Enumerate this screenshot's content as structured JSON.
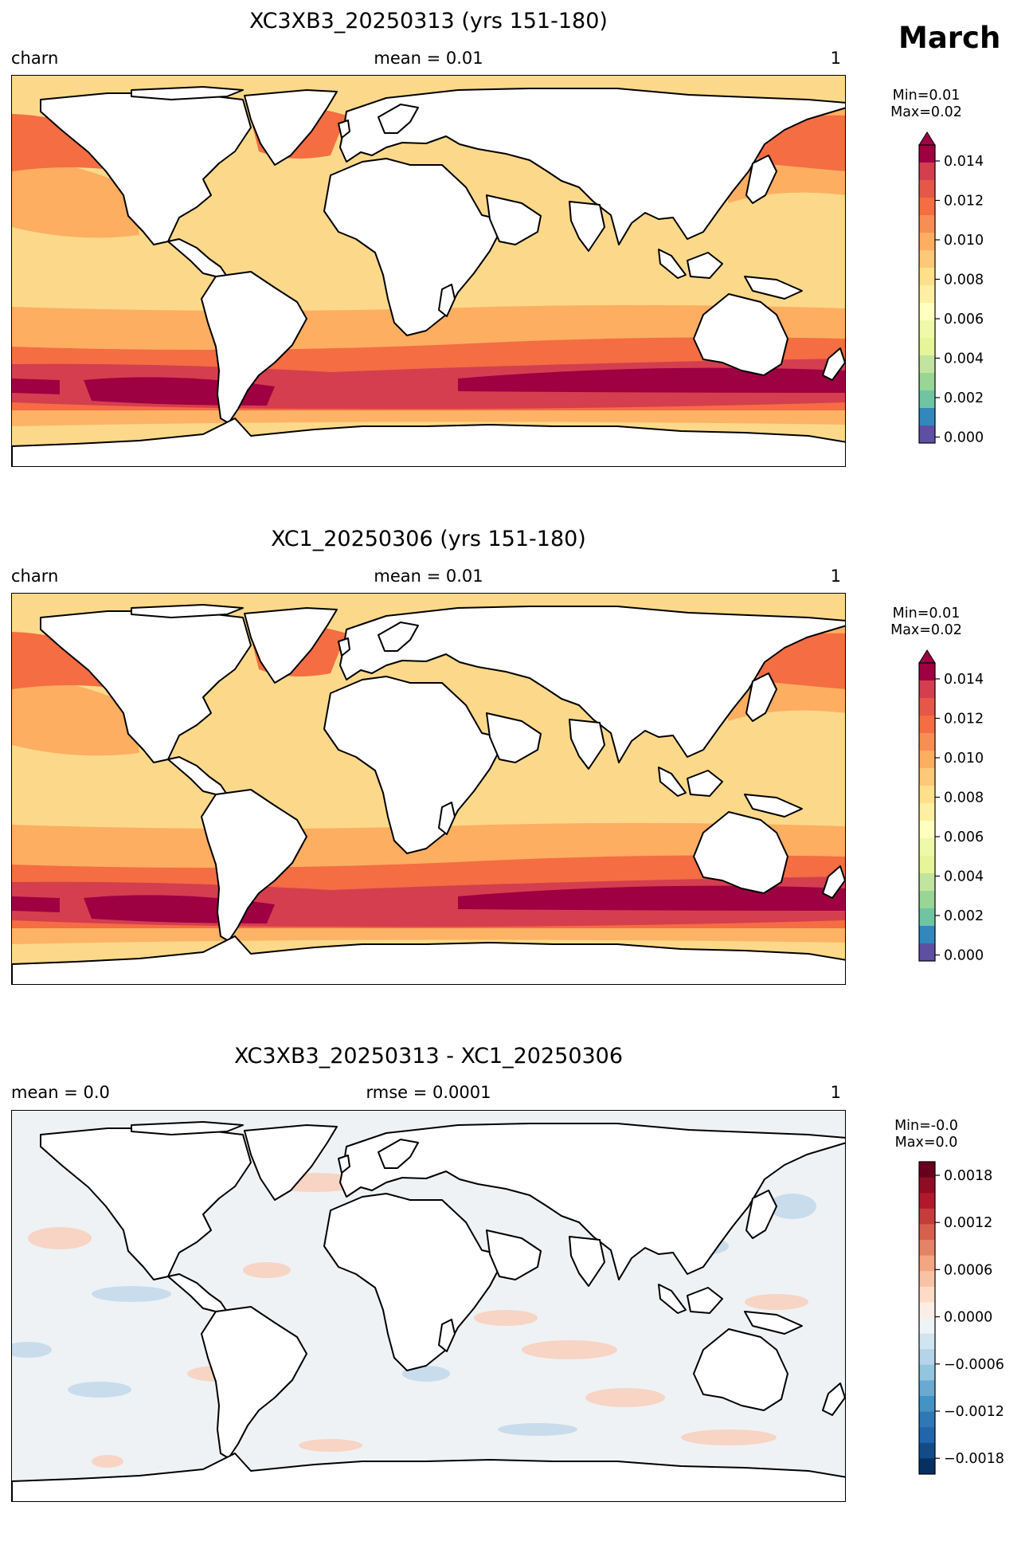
{
  "figure": {
    "month": "March"
  },
  "panels": [
    {
      "title": "XC3XB3_20250313 (yrs 151-180)",
      "left_label": "charn",
      "center_label": "mean = 0.01",
      "right_label": "1",
      "colorbar": {
        "min_label": "Min=0.01",
        "max_label": "Max=0.02",
        "ticks": [
          "0.014",
          "0.012",
          "0.010",
          "0.008",
          "0.006",
          "0.004",
          "0.002",
          "0.000"
        ],
        "extend": "max",
        "colors": [
          "#9e0142",
          "#d53e4f",
          "#e55749",
          "#f46d43",
          "#f88e53",
          "#fdae61",
          "#fdc877",
          "#fee08b",
          "#feefa3",
          "#ffffbf",
          "#f0f8a9",
          "#e6f598",
          "#c1e5a0",
          "#99d594",
          "#70c4a4",
          "#3288bd",
          "#5e4fa2"
        ]
      }
    },
    {
      "title": "XC1_20250306 (yrs 151-180)",
      "left_label": "charn",
      "center_label": "mean = 0.01",
      "right_label": "1",
      "colorbar": {
        "min_label": "Min=0.01",
        "max_label": "Max=0.02",
        "ticks": [
          "0.014",
          "0.012",
          "0.010",
          "0.008",
          "0.006",
          "0.004",
          "0.002",
          "0.000"
        ],
        "extend": "max"
      }
    },
    {
      "title": "XC3XB3_20250313 - XC1_20250306",
      "left_label": "mean = 0.0",
      "center_label": "rmse = 0.0001",
      "right_label": "1",
      "colorbar": {
        "min_label": "Min=-0.0",
        "max_label": "Max=0.0",
        "ticks": [
          "0.0018",
          "0.0012",
          "0.0006",
          "0.0000",
          "−0.0006",
          "−0.0012",
          "−0.0018"
        ],
        "colors": [
          "#67001f",
          "#8e0d25",
          "#b2182b",
          "#c43c3c",
          "#d6604d",
          "#e58368",
          "#f4a582",
          "#f8c2a6",
          "#fddbc7",
          "#fbeee6",
          "#eef3f6",
          "#d1e5f0",
          "#b5d4e9",
          "#92c5de",
          "#6aa9d0",
          "#4393c3",
          "#2e78b5",
          "#2166ac",
          "#134b87",
          "#053061"
        ]
      }
    }
  ],
  "colors": {
    "ocean_base": "#fcd98a",
    "band_orange": "#fdae61",
    "band_red": "#f46d43",
    "band_darkred": "#d53e4f",
    "band_max": "#9e0142",
    "diff_ocean": "#eef2f4",
    "diff_pos": "#f7d4c4",
    "diff_neg": "#c9dcec",
    "land": "#ffffff",
    "coast": "#000000"
  }
}
